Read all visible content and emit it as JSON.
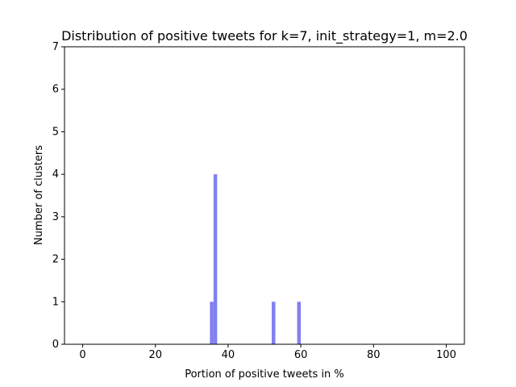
{
  "chart_data": {
    "type": "bar",
    "title": "Distribution of positive tweets for k=7, init_strategy=1, m=2.0",
    "xlabel": "Portion of positive tweets in %",
    "ylabel": "Number of clusters",
    "xlim": [
      -5,
      105
    ],
    "ylim": [
      0,
      7
    ],
    "xticks": [
      "0",
      "20",
      "40",
      "60",
      "80",
      "100"
    ],
    "yticks": [
      "0",
      "1",
      "2",
      "3",
      "4",
      "5",
      "6",
      "7"
    ],
    "bin_width": 1,
    "grid": false,
    "bar_color": "#8080f0",
    "bins": [
      {
        "start": 35,
        "count": 1
      },
      {
        "start": 36,
        "count": 4
      },
      {
        "start": 52,
        "count": 1
      },
      {
        "start": 59,
        "count": 1
      }
    ]
  }
}
